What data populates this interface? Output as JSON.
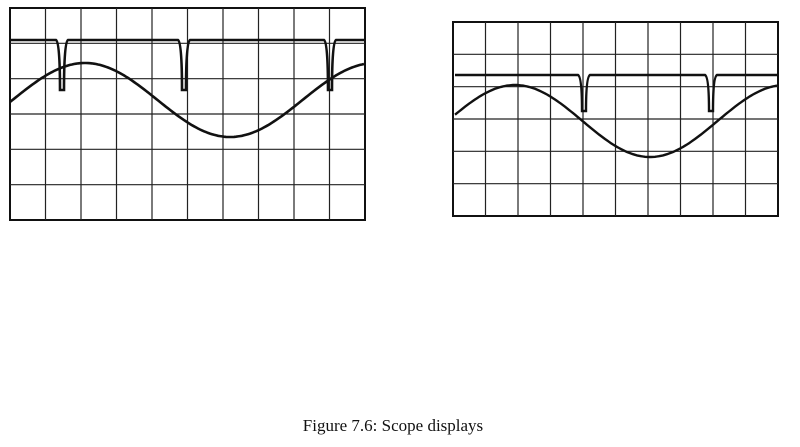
{
  "figure": {
    "caption": "Figure 7.6: Scope displays"
  }
}
